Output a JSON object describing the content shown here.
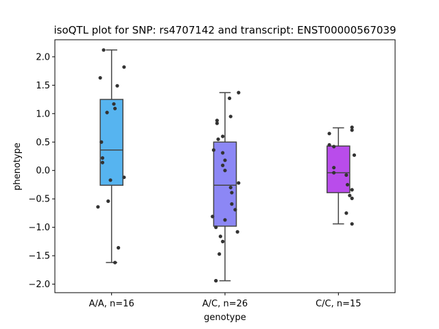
{
  "chart_data": {
    "type": "box",
    "title": "isoQTL plot for SNP: rs4707142 and transcript: ENST00000567039",
    "xlabel": "genotype",
    "ylabel": "phenotype",
    "ylim": [
      -2.15,
      2.3
    ],
    "yticks": [
      2.0,
      1.5,
      1.0,
      0.5,
      0.0,
      -0.5,
      -1.0,
      -1.5,
      -2.0
    ],
    "ytick_labels": [
      "2.0",
      "1.5",
      "1.0",
      "0.5",
      "0.0",
      "−0.5",
      "−1.0",
      "−1.5",
      "−2.0"
    ],
    "grid": false,
    "categories": [
      "A/A, n=16",
      "A/C, n=26",
      "C/C, n=15"
    ],
    "colors": [
      "#56B4F0",
      "#8C87F5",
      "#B94CEB"
    ],
    "edge_color": "#444444",
    "point_color": "#333333",
    "boxes": [
      {
        "q1": -0.26,
        "median": 0.36,
        "q3": 1.25,
        "whisker_low": -1.62,
        "whisker_high": 2.12
      },
      {
        "q1": -0.98,
        "median": -0.26,
        "q3": 0.5,
        "whisker_low": -1.94,
        "whisker_high": 1.37
      },
      {
        "q1": -0.39,
        "median": -0.04,
        "q3": 0.43,
        "whisker_low": -0.94,
        "whisker_high": 0.75
      }
    ],
    "points": [
      [
        {
          "dx": -0.07,
          "y": 2.12
        },
        {
          "dx": -0.1,
          "y": 1.63
        },
        {
          "dx": 0.11,
          "y": 1.82
        },
        {
          "dx": 0.05,
          "y": 1.49
        },
        {
          "dx": 0.02,
          "y": 1.17
        },
        {
          "dx": 0.03,
          "y": 1.09
        },
        {
          "dx": -0.04,
          "y": 1.02
        },
        {
          "dx": -0.09,
          "y": 0.5
        },
        {
          "dx": -0.08,
          "y": 0.22
        },
        {
          "dx": -0.08,
          "y": 0.14
        },
        {
          "dx": 0.11,
          "y": -0.12
        },
        {
          "dx": -0.01,
          "y": -0.17
        },
        {
          "dx": -0.03,
          "y": -0.54
        },
        {
          "dx": -0.12,
          "y": -0.64
        },
        {
          "dx": 0.06,
          "y": -1.36
        },
        {
          "dx": 0.03,
          "y": -1.62
        }
      ],
      [
        {
          "dx": 0.12,
          "y": 1.37
        },
        {
          "dx": 0.04,
          "y": 1.27
        },
        {
          "dx": 0.05,
          "y": 0.95
        },
        {
          "dx": -0.07,
          "y": 0.88
        },
        {
          "dx": -0.07,
          "y": 0.83
        },
        {
          "dx": -0.02,
          "y": 0.6
        },
        {
          "dx": -0.06,
          "y": 0.55
        },
        {
          "dx": -0.1,
          "y": 0.36
        },
        {
          "dx": -0.02,
          "y": 0.31
        },
        {
          "dx": 0.0,
          "y": 0.18
        },
        {
          "dx": -0.02,
          "y": 0.09
        },
        {
          "dx": 0.0,
          "y": 0.0
        },
        {
          "dx": 0.12,
          "y": -0.22
        },
        {
          "dx": 0.05,
          "y": -0.3
        },
        {
          "dx": 0.06,
          "y": -0.39
        },
        {
          "dx": 0.06,
          "y": -0.59
        },
        {
          "dx": 0.09,
          "y": -0.69
        },
        {
          "dx": -0.11,
          "y": -0.81
        },
        {
          "dx": 0.0,
          "y": -0.87
        },
        {
          "dx": -0.08,
          "y": -1.0
        },
        {
          "dx": 0.11,
          "y": -1.08
        },
        {
          "dx": -0.04,
          "y": -1.16
        },
        {
          "dx": -0.02,
          "y": -1.25
        },
        {
          "dx": -0.05,
          "y": -1.47
        },
        {
          "dx": -0.08,
          "y": -1.94
        },
        {
          "dx": -0.08,
          "y": -1.94
        }
      ],
      [
        {
          "dx": 0.12,
          "y": 0.76
        },
        {
          "dx": 0.12,
          "y": 0.71
        },
        {
          "dx": -0.08,
          "y": 0.65
        },
        {
          "dx": -0.08,
          "y": 0.45
        },
        {
          "dx": -0.04,
          "y": 0.42
        },
        {
          "dx": 0.14,
          "y": 0.27
        },
        {
          "dx": -0.04,
          "y": 0.05
        },
        {
          "dx": -0.04,
          "y": -0.04
        },
        {
          "dx": 0.07,
          "y": -0.08
        },
        {
          "dx": 0.08,
          "y": -0.25
        },
        {
          "dx": 0.12,
          "y": -0.34
        },
        {
          "dx": 0.1,
          "y": -0.44
        },
        {
          "dx": 0.12,
          "y": -0.49
        },
        {
          "dx": 0.07,
          "y": -0.75
        },
        {
          "dx": 0.12,
          "y": -0.94
        }
      ]
    ]
  }
}
